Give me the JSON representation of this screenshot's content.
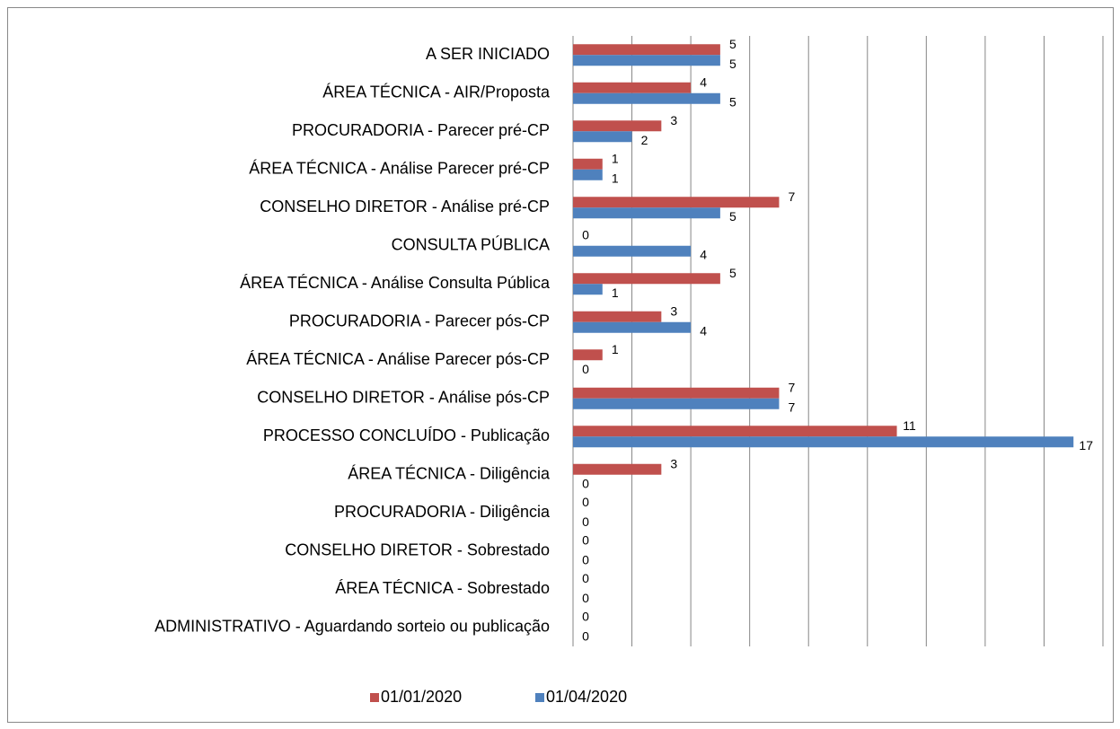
{
  "chart_data": {
    "type": "bar",
    "orientation": "horizontal",
    "categories": [
      "A SER INICIADO",
      "ÁREA TÉCNICA - AIR/Proposta",
      "PROCURADORIA - Parecer pré-CP",
      "ÁREA TÉCNICA - Análise Parecer pré-CP",
      "CONSELHO DIRETOR - Análise pré-CP",
      "CONSULTA PÚBLICA",
      "ÁREA TÉCNICA - Análise Consulta Pública",
      "PROCURADORIA - Parecer pós-CP",
      "ÁREA TÉCNICA - Análise Parecer pós-CP",
      "CONSELHO DIRETOR - Análise pós-CP",
      "PROCESSO CONCLUÍDO - Publicação",
      "ÁREA TÉCNICA - Diligência",
      "PROCURADORIA - Diligência",
      "CONSELHO DIRETOR - Sobrestado",
      "ÁREA TÉCNICA - Sobrestado",
      "ADMINISTRATIVO - Aguardando sorteio ou publicação"
    ],
    "series": [
      {
        "name": "01/01/2020",
        "color": "#c0504d",
        "values": [
          5,
          4,
          3,
          1,
          7,
          0,
          5,
          3,
          1,
          7,
          11,
          3,
          0,
          0,
          0,
          0
        ]
      },
      {
        "name": "01/04/2020",
        "color": "#4f81bd",
        "values": [
          5,
          5,
          2,
          1,
          5,
          4,
          1,
          4,
          0,
          7,
          17,
          0,
          0,
          0,
          0,
          0
        ]
      }
    ],
    "xlim": [
      0,
      18
    ],
    "xticks": [
      0,
      2,
      4,
      6,
      8,
      10,
      12,
      14,
      16,
      18
    ],
    "grid": true,
    "legend": "bottom"
  }
}
